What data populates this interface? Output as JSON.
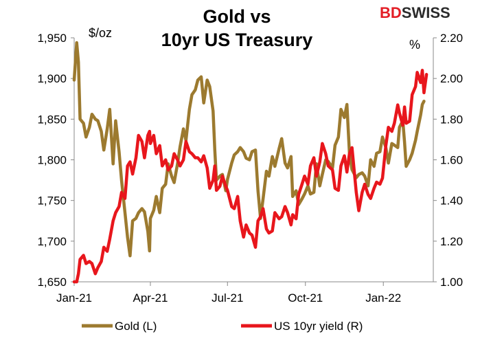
{
  "header": {
    "title_line1": "Gold vs",
    "title_line2": "10yr US Treasury",
    "logo_left": "BD",
    "logo_right": "SWISS",
    "left_unit": "$/oz",
    "right_unit": "%"
  },
  "colors": {
    "gold": "#9c7a2f",
    "yield": "#e8161c",
    "axis": "#888888",
    "brand": "#e31e26"
  },
  "chart_data": {
    "type": "line",
    "left_axis": {
      "ylim": [
        1650,
        1950
      ],
      "ticks": [
        "1,650",
        "1,700",
        "1,750",
        "1,800",
        "1,850",
        "1,900",
        "1,950"
      ],
      "values": [
        1650,
        1700,
        1750,
        1800,
        1850,
        1900,
        1950
      ]
    },
    "right_axis": {
      "ylim": [
        1.0,
        2.2
      ],
      "ticks": [
        "1.00",
        "1.20",
        "1.40",
        "1.60",
        "1.80",
        "2.00",
        "2.20"
      ],
      "values": [
        1.0,
        1.2,
        1.4,
        1.6,
        1.8,
        2.0,
        2.2
      ]
    },
    "x_ticks": [
      {
        "label": "Jan-21",
        "date": "2021-01-01"
      },
      {
        "label": "Apr-21",
        "date": "2021-04-01"
      },
      {
        "label": "Jul-21",
        "date": "2021-07-01"
      },
      {
        "label": "Oct-21",
        "date": "2021-10-01"
      },
      {
        "label": "Jan-22",
        "date": "2022-01-01"
      }
    ],
    "x_range": [
      "2021-01-01",
      "2022-03-01"
    ],
    "legend": [
      "Gold (L)",
      "US 10yr yield (R)"
    ],
    "legend_placement": "bottom",
    "series": [
      {
        "name": "Gold (L)",
        "axis": "left",
        "points": [
          [
            "2021-01-01",
            1898
          ],
          [
            "2021-01-04",
            1944
          ],
          [
            "2021-01-06",
            1920
          ],
          [
            "2021-01-08",
            1850
          ],
          [
            "2021-01-12",
            1845
          ],
          [
            "2021-01-15",
            1828
          ],
          [
            "2021-01-19",
            1840
          ],
          [
            "2021-01-22",
            1856
          ],
          [
            "2021-01-26",
            1850
          ],
          [
            "2021-01-29",
            1848
          ],
          [
            "2021-02-02",
            1835
          ],
          [
            "2021-02-05",
            1812
          ],
          [
            "2021-02-09",
            1838
          ],
          [
            "2021-02-12",
            1862
          ],
          [
            "2021-02-16",
            1795
          ],
          [
            "2021-02-19",
            1848
          ],
          [
            "2021-02-23",
            1810
          ],
          [
            "2021-02-26",
            1774
          ],
          [
            "2021-03-02",
            1735
          ],
          [
            "2021-03-05",
            1705
          ],
          [
            "2021-03-08",
            1682
          ],
          [
            "2021-03-11",
            1725
          ],
          [
            "2021-03-15",
            1728
          ],
          [
            "2021-03-18",
            1735
          ],
          [
            "2021-03-22",
            1740
          ],
          [
            "2021-03-25",
            1736
          ],
          [
            "2021-03-29",
            1712
          ],
          [
            "2021-03-31",
            1688
          ],
          [
            "2021-04-01",
            1728
          ],
          [
            "2021-04-05",
            1738
          ],
          [
            "2021-04-08",
            1755
          ],
          [
            "2021-04-12",
            1735
          ],
          [
            "2021-04-15",
            1765
          ],
          [
            "2021-04-19",
            1770
          ],
          [
            "2021-04-22",
            1795
          ],
          [
            "2021-04-26",
            1780
          ],
          [
            "2021-04-29",
            1772
          ],
          [
            "2021-05-03",
            1795
          ],
          [
            "2021-05-06",
            1816
          ],
          [
            "2021-05-10",
            1838
          ],
          [
            "2021-05-13",
            1824
          ],
          [
            "2021-05-17",
            1862
          ],
          [
            "2021-05-20",
            1880
          ],
          [
            "2021-05-24",
            1886
          ],
          [
            "2021-05-27",
            1898
          ],
          [
            "2021-05-31",
            1902
          ],
          [
            "2021-06-03",
            1870
          ],
          [
            "2021-06-07",
            1898
          ],
          [
            "2021-06-10",
            1890
          ],
          [
            "2021-06-14",
            1860
          ],
          [
            "2021-06-16",
            1812
          ],
          [
            "2021-06-18",
            1775
          ],
          [
            "2021-06-22",
            1780
          ],
          [
            "2021-06-25",
            1782
          ],
          [
            "2021-06-29",
            1762
          ],
          [
            "2021-07-01",
            1776
          ],
          [
            "2021-07-06",
            1796
          ],
          [
            "2021-07-09",
            1806
          ],
          [
            "2021-07-13",
            1810
          ],
          [
            "2021-07-16",
            1815
          ],
          [
            "2021-07-20",
            1810
          ],
          [
            "2021-07-23",
            1802
          ],
          [
            "2021-07-27",
            1800
          ],
          [
            "2021-07-30",
            1810
          ],
          [
            "2021-08-03",
            1812
          ],
          [
            "2021-08-06",
            1762
          ],
          [
            "2021-08-09",
            1728
          ],
          [
            "2021-08-12",
            1752
          ],
          [
            "2021-08-16",
            1786
          ],
          [
            "2021-08-19",
            1780
          ],
          [
            "2021-08-23",
            1804
          ],
          [
            "2021-08-26",
            1792
          ],
          [
            "2021-08-31",
            1814
          ],
          [
            "2021-09-03",
            1826
          ],
          [
            "2021-09-07",
            1796
          ],
          [
            "2021-09-10",
            1790
          ],
          [
            "2021-09-14",
            1804
          ],
          [
            "2021-09-16",
            1755
          ],
          [
            "2021-09-20",
            1762
          ],
          [
            "2021-09-23",
            1745
          ],
          [
            "2021-09-27",
            1752
          ],
          [
            "2021-09-30",
            1758
          ],
          [
            "2021-10-04",
            1768
          ],
          [
            "2021-10-07",
            1758
          ],
          [
            "2021-10-11",
            1760
          ],
          [
            "2021-10-14",
            1795
          ],
          [
            "2021-10-18",
            1768
          ],
          [
            "2021-10-21",
            1782
          ],
          [
            "2021-10-25",
            1800
          ],
          [
            "2021-10-28",
            1798
          ],
          [
            "2021-11-02",
            1790
          ],
          [
            "2021-11-05",
            1818
          ],
          [
            "2021-11-09",
            1828
          ],
          [
            "2021-11-12",
            1862
          ],
          [
            "2021-11-16",
            1852
          ],
          [
            "2021-11-19",
            1868
          ],
          [
            "2021-11-22",
            1808
          ],
          [
            "2021-11-25",
            1788
          ],
          [
            "2021-11-30",
            1778
          ],
          [
            "2021-12-03",
            1782
          ],
          [
            "2021-12-07",
            1784
          ],
          [
            "2021-12-10",
            1780
          ],
          [
            "2021-12-14",
            1768
          ],
          [
            "2021-12-17",
            1800
          ],
          [
            "2021-12-21",
            1792
          ],
          [
            "2021-12-24",
            1808
          ],
          [
            "2021-12-28",
            1810
          ],
          [
            "2021-12-31",
            1828
          ],
          [
            "2022-01-04",
            1815
          ],
          [
            "2022-01-07",
            1796
          ],
          [
            "2022-01-11",
            1820
          ],
          [
            "2022-01-14",
            1818
          ],
          [
            "2022-01-18",
            1815
          ],
          [
            "2022-01-20",
            1840
          ],
          [
            "2022-01-24",
            1848
          ],
          [
            "2022-01-26",
            1822
          ],
          [
            "2022-01-28",
            1792
          ],
          [
            "2022-02-01",
            1800
          ],
          [
            "2022-02-04",
            1808
          ],
          [
            "2022-02-08",
            1824
          ],
          [
            "2022-02-10",
            1835
          ],
          [
            "2022-02-14",
            1855
          ],
          [
            "2022-02-16",
            1868
          ],
          [
            "2022-02-18",
            1872
          ]
        ]
      },
      {
        "name": "US 10yr yield (R)",
        "axis": "right",
        "points": [
          [
            "2021-01-01",
            0.92
          ],
          [
            "2021-01-04",
            0.98
          ],
          [
            "2021-01-06",
            1.04
          ],
          [
            "2021-01-08",
            1.11
          ],
          [
            "2021-01-12",
            1.13
          ],
          [
            "2021-01-15",
            1.09
          ],
          [
            "2021-01-19",
            1.1
          ],
          [
            "2021-01-22",
            1.09
          ],
          [
            "2021-01-26",
            1.04
          ],
          [
            "2021-01-29",
            1.07
          ],
          [
            "2021-02-02",
            1.1
          ],
          [
            "2021-02-05",
            1.17
          ],
          [
            "2021-02-09",
            1.15
          ],
          [
            "2021-02-12",
            1.21
          ],
          [
            "2021-02-16",
            1.3
          ],
          [
            "2021-02-19",
            1.34
          ],
          [
            "2021-02-23",
            1.37
          ],
          [
            "2021-02-26",
            1.44
          ],
          [
            "2021-03-02",
            1.41
          ],
          [
            "2021-03-05",
            1.57
          ],
          [
            "2021-03-08",
            1.59
          ],
          [
            "2021-03-11",
            1.53
          ],
          [
            "2021-03-15",
            1.61
          ],
          [
            "2021-03-18",
            1.72
          ],
          [
            "2021-03-22",
            1.69
          ],
          [
            "2021-03-25",
            1.61
          ],
          [
            "2021-03-29",
            1.72
          ],
          [
            "2021-03-31",
            1.74
          ],
          [
            "2021-04-01",
            1.68
          ],
          [
            "2021-04-05",
            1.72
          ],
          [
            "2021-04-08",
            1.63
          ],
          [
            "2021-04-12",
            1.67
          ],
          [
            "2021-04-15",
            1.57
          ],
          [
            "2021-04-19",
            1.6
          ],
          [
            "2021-04-22",
            1.55
          ],
          [
            "2021-04-26",
            1.57
          ],
          [
            "2021-04-29",
            1.63
          ],
          [
            "2021-05-03",
            1.6
          ],
          [
            "2021-05-06",
            1.57
          ],
          [
            "2021-05-10",
            1.6
          ],
          [
            "2021-05-13",
            1.69
          ],
          [
            "2021-05-17",
            1.64
          ],
          [
            "2021-05-20",
            1.63
          ],
          [
            "2021-05-24",
            1.61
          ],
          [
            "2021-05-27",
            1.61
          ],
          [
            "2021-05-31",
            1.59
          ],
          [
            "2021-06-03",
            1.62
          ],
          [
            "2021-06-07",
            1.56
          ],
          [
            "2021-06-10",
            1.46
          ],
          [
            "2021-06-14",
            1.5
          ],
          [
            "2021-06-16",
            1.57
          ],
          [
            "2021-06-18",
            1.45
          ],
          [
            "2021-06-22",
            1.47
          ],
          [
            "2021-06-25",
            1.52
          ],
          [
            "2021-06-29",
            1.47
          ],
          [
            "2021-07-01",
            1.45
          ],
          [
            "2021-07-06",
            1.37
          ],
          [
            "2021-07-09",
            1.36
          ],
          [
            "2021-07-13",
            1.42
          ],
          [
            "2021-07-16",
            1.3
          ],
          [
            "2021-07-20",
            1.22
          ],
          [
            "2021-07-23",
            1.28
          ],
          [
            "2021-07-27",
            1.24
          ],
          [
            "2021-07-30",
            1.23
          ],
          [
            "2021-08-03",
            1.17
          ],
          [
            "2021-08-06",
            1.3
          ],
          [
            "2021-08-09",
            1.32
          ],
          [
            "2021-08-12",
            1.36
          ],
          [
            "2021-08-16",
            1.26
          ],
          [
            "2021-08-19",
            1.24
          ],
          [
            "2021-08-23",
            1.25
          ],
          [
            "2021-08-26",
            1.34
          ],
          [
            "2021-08-31",
            1.31
          ],
          [
            "2021-09-03",
            1.32
          ],
          [
            "2021-09-07",
            1.37
          ],
          [
            "2021-09-10",
            1.34
          ],
          [
            "2021-09-14",
            1.28
          ],
          [
            "2021-09-16",
            1.33
          ],
          [
            "2021-09-20",
            1.31
          ],
          [
            "2021-09-23",
            1.43
          ],
          [
            "2021-09-27",
            1.48
          ],
          [
            "2021-09-30",
            1.52
          ],
          [
            "2021-10-04",
            1.48
          ],
          [
            "2021-10-07",
            1.57
          ],
          [
            "2021-10-11",
            1.61
          ],
          [
            "2021-10-14",
            1.52
          ],
          [
            "2021-10-18",
            1.59
          ],
          [
            "2021-10-21",
            1.68
          ],
          [
            "2021-10-25",
            1.63
          ],
          [
            "2021-10-28",
            1.57
          ],
          [
            "2021-11-02",
            1.55
          ],
          [
            "2021-11-05",
            1.46
          ],
          [
            "2021-11-09",
            1.45
          ],
          [
            "2021-11-12",
            1.57
          ],
          [
            "2021-11-16",
            1.62
          ],
          [
            "2021-11-19",
            1.54
          ],
          [
            "2021-11-22",
            1.63
          ],
          [
            "2021-11-25",
            1.66
          ],
          [
            "2021-11-30",
            1.44
          ],
          [
            "2021-12-03",
            1.35
          ],
          [
            "2021-12-07",
            1.44
          ],
          [
            "2021-12-10",
            1.48
          ],
          [
            "2021-12-14",
            1.43
          ],
          [
            "2021-12-17",
            1.41
          ],
          [
            "2021-12-21",
            1.46
          ],
          [
            "2021-12-24",
            1.49
          ],
          [
            "2021-12-28",
            1.48
          ],
          [
            "2021-12-31",
            1.51
          ],
          [
            "2022-01-04",
            1.67
          ],
          [
            "2022-01-07",
            1.76
          ],
          [
            "2022-01-11",
            1.74
          ],
          [
            "2022-01-14",
            1.78
          ],
          [
            "2022-01-18",
            1.87
          ],
          [
            "2022-01-20",
            1.83
          ],
          [
            "2022-01-24",
            1.77
          ],
          [
            "2022-01-26",
            1.86
          ],
          [
            "2022-01-28",
            1.78
          ],
          [
            "2022-02-01",
            1.79
          ],
          [
            "2022-02-04",
            1.92
          ],
          [
            "2022-02-08",
            1.96
          ],
          [
            "2022-02-10",
            2.03
          ],
          [
            "2022-02-14",
            1.98
          ],
          [
            "2022-02-16",
            2.04
          ],
          [
            "2022-02-18",
            1.93
          ],
          [
            "2022-02-21",
            2.02
          ]
        ]
      }
    ]
  }
}
